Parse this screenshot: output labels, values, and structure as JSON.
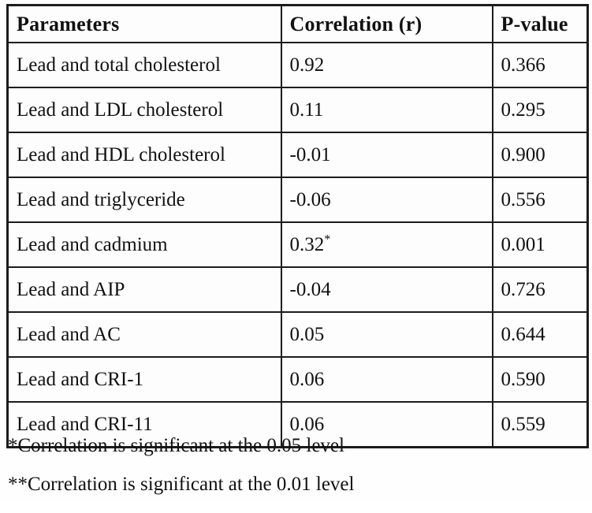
{
  "colors": {
    "border": "#1c1c1c",
    "text": "#111111",
    "background": "#fefefe"
  },
  "table": {
    "headers": [
      "Parameters",
      "Correlation (r)",
      "P-value"
    ],
    "rows": [
      {
        "param": "Lead and total cholesterol",
        "r": "0.92",
        "r_sup": "",
        "p": "0.366"
      },
      {
        "param": "Lead and LDL cholesterol",
        "r": "0.11",
        "r_sup": "",
        "p": "0.295"
      },
      {
        "param": "Lead and HDL cholesterol",
        "r": "-0.01",
        "r_sup": "",
        "p": "0.900"
      },
      {
        "param": "Lead and triglyceride",
        "r": "-0.06",
        "r_sup": "",
        "p": "0.556"
      },
      {
        "param": "Lead and cadmium",
        "r": "0.32",
        "r_sup": "*",
        "p": "0.001"
      },
      {
        "param": "Lead and AIP",
        "r": "-0.04",
        "r_sup": "",
        "p": "0.726"
      },
      {
        "param": "Lead and AC",
        "r": "0.05",
        "r_sup": "",
        "p": "0.644"
      },
      {
        "param": "Lead and CRI-1",
        "r": "0.06",
        "r_sup": "",
        "p": "0.590"
      },
      {
        "param": "Lead and CRI-11",
        "r": "0.06",
        "r_sup": "",
        "p": "0.559"
      }
    ]
  },
  "footnotes": [
    "*Correlation is significant at the 0.05 level",
    "**Correlation is significant at the 0.01 level"
  ]
}
